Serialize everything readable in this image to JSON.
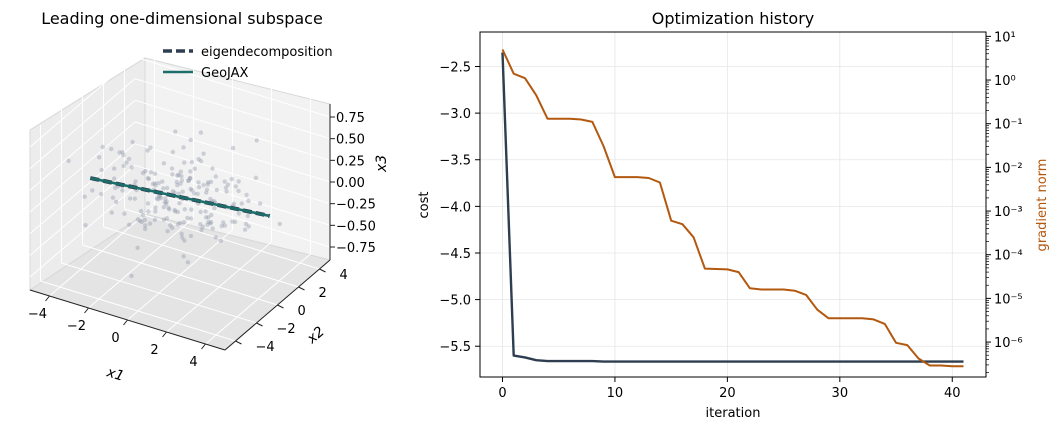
{
  "figure": {
    "colors": {
      "eigen": "#2e3e50",
      "geojax": "#1b6e6a",
      "cost": "#2e3e50",
      "grad": "#b3580f",
      "points": "#8b93a6"
    }
  },
  "chart_data": [
    {
      "type": "scatter3d",
      "title": "Leading one-dimensional subspace",
      "xlabel": "x1",
      "ylabel": "x2",
      "zlabel": "x3",
      "xlim": [
        -5,
        5
      ],
      "ylim": [
        -5,
        5
      ],
      "zlim": [
        -0.9,
        0.9
      ],
      "xticks": [
        -4,
        -2,
        0,
        2,
        4
      ],
      "yticks": [
        -4,
        -2,
        0,
        2,
        4
      ],
      "zticks": [
        -0.75,
        -0.5,
        -0.25,
        0.0,
        0.25,
        0.5,
        0.75
      ],
      "xtick_labels": [
        "−4",
        "−2",
        "0",
        "2",
        "4"
      ],
      "ytick_labels": [
        "−4",
        "−2",
        "0",
        "2",
        "4"
      ],
      "ztick_labels": [
        "−0.75",
        "−0.50",
        "−0.25",
        "0.00",
        "0.25",
        "0.50",
        "0.75"
      ],
      "legend": {
        "placement": "top-right",
        "entries": [
          "eigendecomposition",
          "GeoJAX"
        ]
      },
      "series": [
        {
          "name": "eigendecomposition",
          "type": "line3d",
          "style": "dashed",
          "points": [
            [
              -4.6,
              0.0,
              -0.1
            ],
            [
              4.6,
              0.0,
              0.1
            ]
          ]
        },
        {
          "name": "GeoJAX",
          "type": "line3d",
          "style": "solid",
          "points": [
            [
              -4.6,
              0.0,
              -0.1
            ],
            [
              4.6,
              0.0,
              0.1
            ]
          ]
        }
      ],
      "samples": 200
    },
    {
      "type": "line",
      "title": "Optimization history",
      "xlabel": "iteration",
      "ylabel": "cost",
      "y2label": "gradient norm",
      "xlim": [
        -2,
        43
      ],
      "ylim": [
        -5.83,
        -2.13
      ],
      "y2scale": "log",
      "y2lim_exp": [
        -6.8,
        1.1
      ],
      "grid": true,
      "xticks": [
        0,
        10,
        20,
        30,
        40
      ],
      "yticks": [
        -5.5,
        -5.0,
        -4.5,
        -4.0,
        -3.5,
        -3.0,
        -2.5
      ],
      "ytick_labels": [
        "−5.5",
        "−5.0",
        "−4.5",
        "−4.0",
        "−3.5",
        "−3.0",
        "−2.5"
      ],
      "y2ticks_exp": [
        1,
        0,
        -1,
        -2,
        -3,
        -4,
        -5,
        -6
      ],
      "y2tick_labels": [
        "10¹",
        "10⁰",
        "10⁻¹",
        "10⁻²",
        "10⁻³",
        "10⁻⁴",
        "10⁻⁵",
        "10⁻⁶"
      ],
      "x": [
        0,
        1,
        2,
        3,
        4,
        5,
        6,
        7,
        8,
        9,
        10,
        11,
        12,
        13,
        14,
        15,
        16,
        17,
        18,
        19,
        20,
        21,
        22,
        23,
        24,
        25,
        26,
        27,
        28,
        29,
        30,
        31,
        32,
        33,
        34,
        35,
        36,
        37,
        38,
        39,
        40,
        41
      ],
      "series": [
        {
          "name": "cost",
          "axis": "left",
          "values": [
            -2.35,
            -5.6,
            -5.62,
            -5.65,
            -5.66,
            -5.66,
            -5.66,
            -5.66,
            -5.66,
            -5.665,
            -5.665,
            -5.665,
            -5.665,
            -5.665,
            -5.665,
            -5.665,
            -5.665,
            -5.665,
            -5.665,
            -5.665,
            -5.665,
            -5.665,
            -5.665,
            -5.665,
            -5.665,
            -5.665,
            -5.665,
            -5.665,
            -5.665,
            -5.665,
            -5.665,
            -5.665,
            -5.665,
            -5.665,
            -5.665,
            -5.665,
            -5.665,
            -5.665,
            -5.665,
            -5.665,
            -5.665,
            -5.665
          ]
        },
        {
          "name": "gradient norm",
          "axis": "right",
          "values": [
            5.0,
            1.4,
            1.1,
            0.45,
            0.13,
            0.13,
            0.13,
            0.125,
            0.11,
            0.03,
            0.006,
            0.006,
            0.006,
            0.0057,
            0.0045,
            0.0006,
            0.0005,
            0.00025,
            4.8e-05,
            4.7e-05,
            4.6e-05,
            4e-05,
            1.7e-05,
            1.6e-05,
            1.6e-05,
            1.6e-05,
            1.5e-05,
            1.2e-05,
            5.5e-06,
            3.5e-06,
            3.5e-06,
            3.5e-06,
            3.5e-06,
            3.3e-06,
            2.6e-06,
            9.6e-07,
            8.5e-07,
            4.2e-07,
            2.9e-07,
            2.9e-07,
            2.8e-07,
            2.8e-07
          ]
        }
      ]
    }
  ]
}
